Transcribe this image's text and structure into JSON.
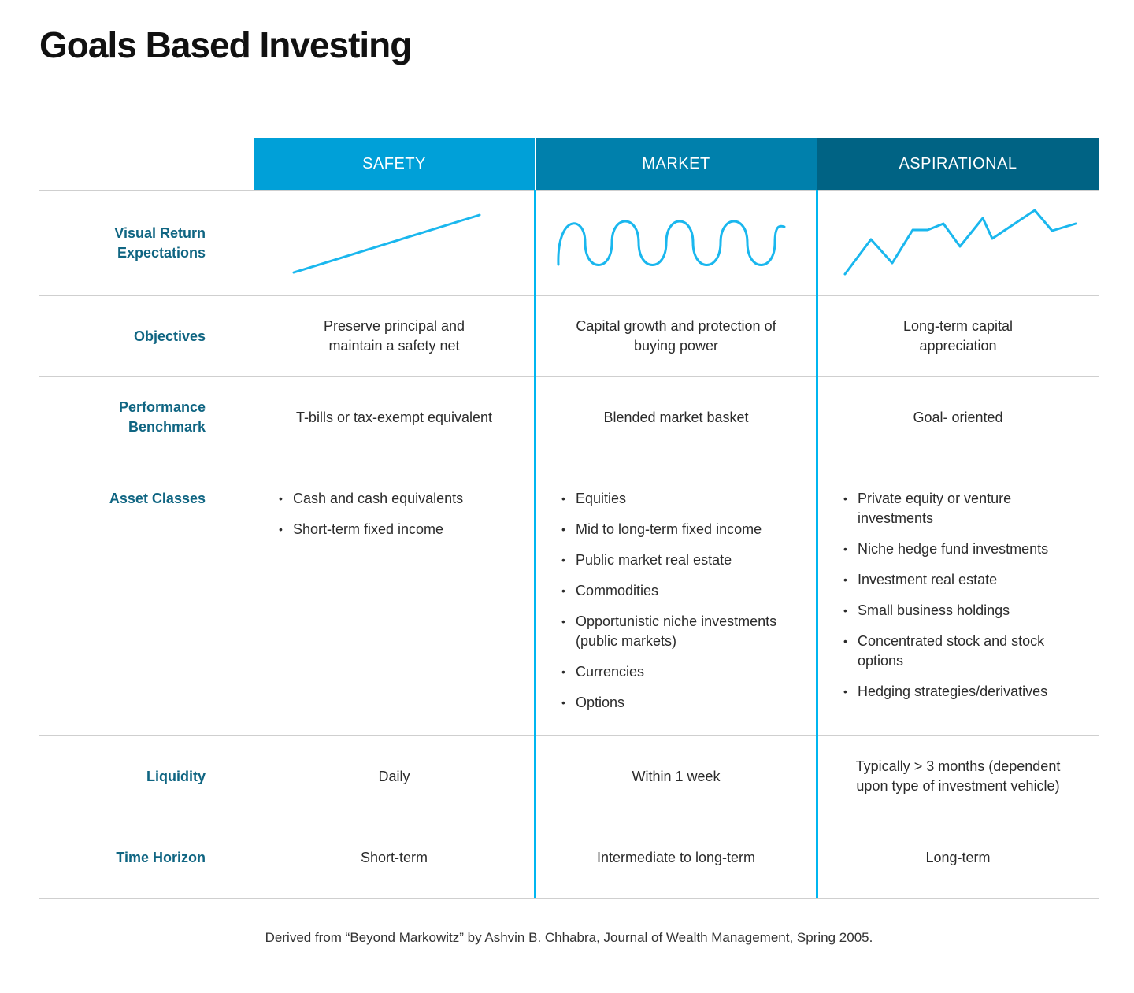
{
  "title": "Goals Based Investing",
  "colors": {
    "safety_header": "#00a0d8",
    "market_header": "#0080ac",
    "aspirational_header": "#006384",
    "row_label": "#0f6582",
    "divider_accent": "#00b6f0",
    "line_graphic": "#1ab7ee"
  },
  "columns": {
    "safety": "SAFETY",
    "market": "MARKET",
    "aspirational": "ASPIRATIONAL"
  },
  "rows": {
    "visual_return": {
      "label": "Visual Return Expectations"
    },
    "objectives": {
      "label": "Objectives",
      "safety": "Preserve principal and maintain a safety net",
      "market": "Capital growth and protection of buying power",
      "aspirational": "Long-term capital appreciation"
    },
    "benchmark": {
      "label": "Performance Benchmark",
      "safety": "T-bills or tax-exempt equivalent",
      "market": "Blended market basket",
      "aspirational": "Goal- oriented"
    },
    "asset_classes": {
      "label": "Asset Classes",
      "safety": [
        "Cash and cash equivalents",
        "Short-term fixed income"
      ],
      "market": [
        "Equities",
        "Mid to long-term fixed income",
        "Public market real estate",
        "Commodities",
        "Opportunistic niche investments (public markets)",
        "Currencies",
        "Options"
      ],
      "aspirational": [
        "Private equity or venture investments",
        "Niche hedge fund investments",
        "Investment real estate",
        "Small business holdings",
        "Concentrated stock and stock options",
        "Hedging strategies/derivatives"
      ]
    },
    "liquidity": {
      "label": "Liquidity",
      "safety": "Daily",
      "market": "Within 1 week",
      "aspirational": "Typically > 3 months (dependent upon type of investment vehicle)"
    },
    "time_horizon": {
      "label": "Time Horizon",
      "safety": "Short-term",
      "market": "Intermediate to long-term",
      "aspirational": "Long-term"
    }
  },
  "footnote": "Derived from “Beyond Markowitz” by Ashvin B. Chhabra, Journal of Wealth Management, Spring 2005."
}
